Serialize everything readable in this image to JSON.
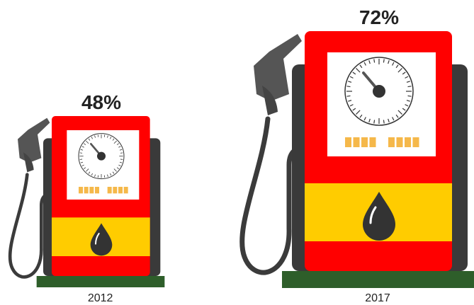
{
  "chart_data": {
    "type": "pictograph",
    "categories": [
      "2012",
      "2017"
    ],
    "values": [
      48,
      72
    ],
    "value_labels": [
      "48%",
      "72%"
    ],
    "color": "#ff0000"
  }
}
